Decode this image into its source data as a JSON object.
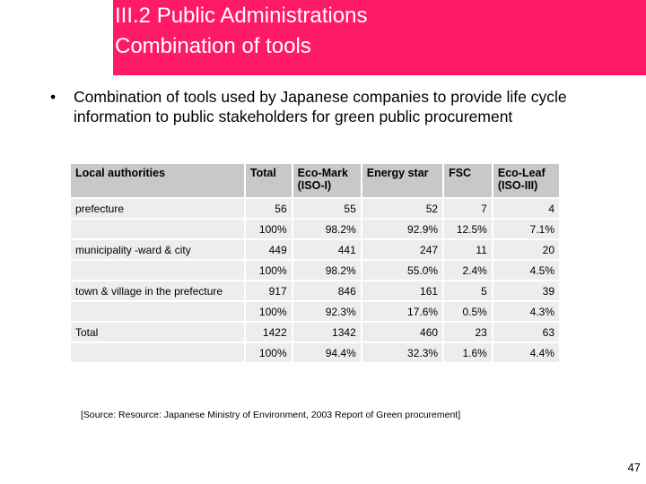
{
  "slide": {
    "title_line1": "III.2 Public Administrations",
    "title_line2": "Combination of tools",
    "bullet_symbol": "•",
    "bullet_text": "Combination of tools used by Japanese companies to provide life cycle information to public stakeholders for green public procurement",
    "source": "[Source: Resource: Japanese Ministry of Environment, 2003 Report of Green procurement]",
    "page_number": "47"
  },
  "table": {
    "headers": [
      "Local authorities",
      "Total",
      "Eco-Mark (ISO-I)",
      "Energy star",
      "FSC",
      "Eco-Leaf (ISO-III)"
    ],
    "groups": [
      {
        "label": "prefecture",
        "counts": [
          "56",
          "55",
          "52",
          "7",
          "4"
        ],
        "percents": [
          "100%",
          "98.2%",
          "92.9%",
          "12.5%",
          "7.1%"
        ]
      },
      {
        "label": "municipality -ward & city",
        "counts": [
          "449",
          "441",
          "247",
          "11",
          "20"
        ],
        "percents": [
          "100%",
          "98.2%",
          "55.0%",
          "2.4%",
          "4.5%"
        ]
      },
      {
        "label": "town & village in the prefecture",
        "counts": [
          "917",
          "846",
          "161",
          "5",
          "39"
        ],
        "percents": [
          "100%",
          "92.3%",
          "17.6%",
          "0.5%",
          "4.3%"
        ]
      },
      {
        "label": "Total",
        "counts": [
          "1422",
          "1342",
          "460",
          "23",
          "63"
        ],
        "percents": [
          "100%",
          "94.4%",
          "32.3%",
          "1.6%",
          "4.4%"
        ]
      }
    ]
  }
}
